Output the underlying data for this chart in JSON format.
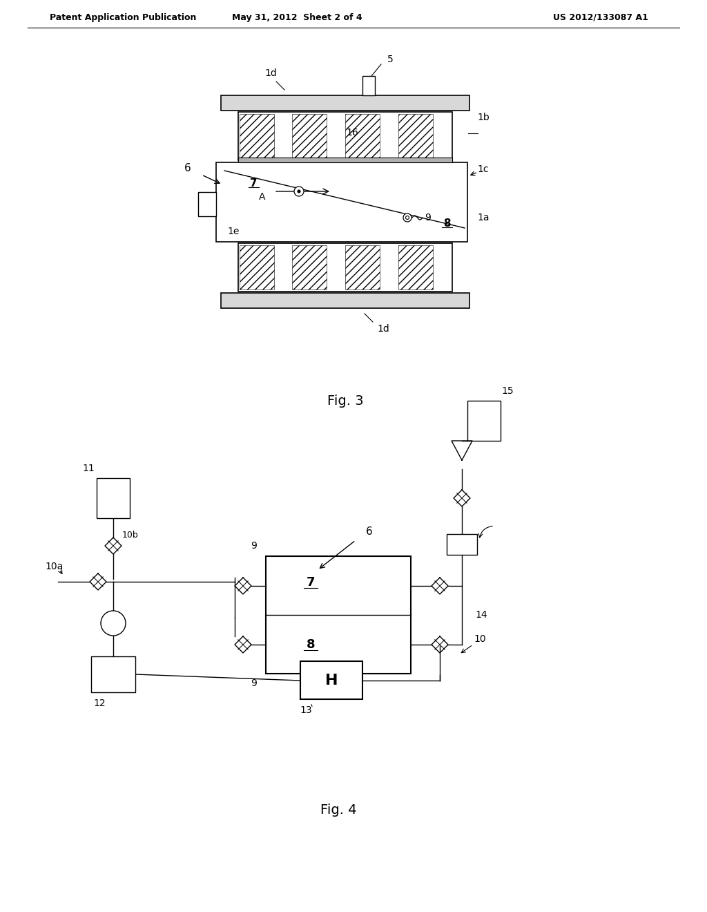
{
  "bg_color": "#ffffff",
  "header_left": "Patent Application Publication",
  "header_mid": "May 31, 2012  Sheet 2 of 4",
  "header_right": "US 2012/133087 A1",
  "fig3_caption": "Fig. 3",
  "fig4_caption": "Fig. 4"
}
